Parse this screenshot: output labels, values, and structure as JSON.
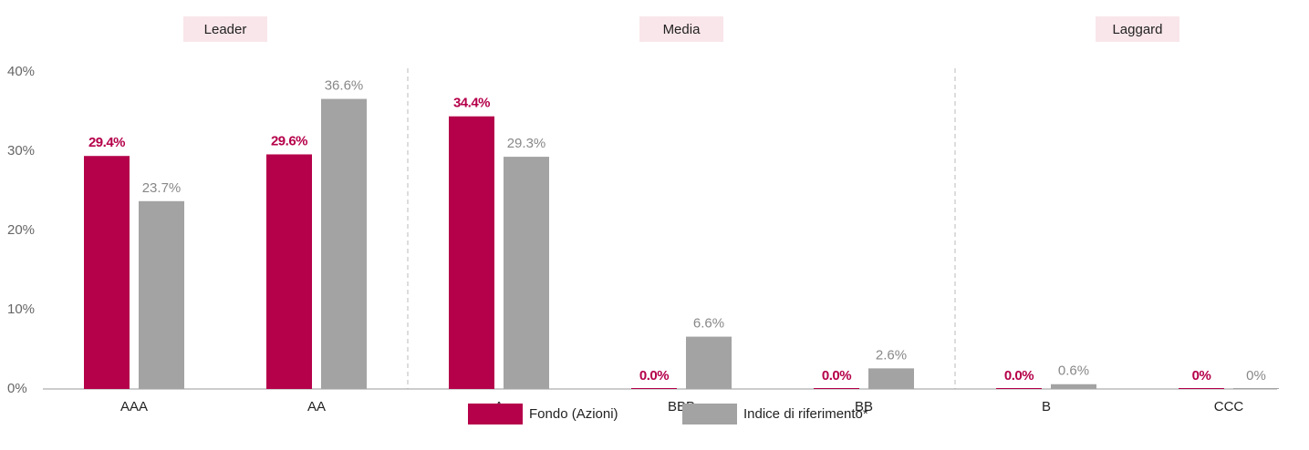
{
  "chart_data": {
    "type": "bar",
    "groups": [
      {
        "name": "Leader",
        "members": [
          "AAA",
          "AA"
        ]
      },
      {
        "name": "Media",
        "members": [
          "A",
          "BBB",
          "BB"
        ]
      },
      {
        "name": "Laggard",
        "members": [
          "B",
          "CCC"
        ]
      }
    ],
    "categories": [
      "AAA",
      "AA",
      "A",
      "BBB",
      "BB",
      "B",
      "CCC"
    ],
    "series": [
      {
        "name": "Fondo (Azioni)",
        "color": "#b5004a",
        "values": [
          29.4,
          29.6,
          34.4,
          0,
          0,
          0,
          0
        ],
        "value_labels": [
          "29.4%",
          "29.6%",
          "34.4%",
          "0.0%",
          "0.0%",
          "0.0%",
          "0%"
        ]
      },
      {
        "name": "Indice di riferimento*",
        "color": "#a3a3a3",
        "values": [
          23.7,
          36.6,
          29.3,
          6.6,
          2.6,
          0.6,
          0
        ],
        "value_labels": [
          "23.7%",
          "36.6%",
          "29.3%",
          "6.6%",
          "2.6%",
          "0.6%",
          "0%"
        ]
      }
    ],
    "ylim": [
      0,
      40
    ],
    "yticks": [
      {
        "value": 0,
        "label": "0%"
      },
      {
        "value": 10,
        "label": "10%"
      },
      {
        "value": 20,
        "label": "20%"
      },
      {
        "value": 30,
        "label": "30%"
      },
      {
        "value": 40,
        "label": "40%"
      }
    ],
    "grid": false
  }
}
